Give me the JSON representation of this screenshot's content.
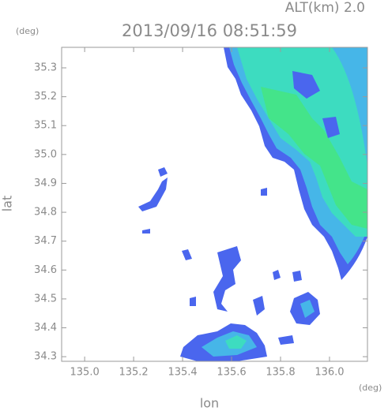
{
  "chart_data": {
    "type": "map",
    "annotation": "ALT(km) 2.0",
    "title": "2013/09/16 08:51:59",
    "y_unit": "(deg)",
    "x_unit": "(deg)",
    "xlabel": "lon",
    "ylabel": "lat",
    "xlim": [
      134.906,
      136.155
    ],
    "ylim": [
      34.284,
      35.371
    ],
    "xticks": [
      {
        "value": 135,
        "label": "135.0"
      },
      135.2,
      135.4,
      135.6,
      135.8,
      {
        "value": 136,
        "label": "136.0"
      }
    ],
    "yticks": [
      34.3,
      34.4,
      34.5,
      34.6,
      34.7,
      34.8,
      34.9,
      {
        "value": 35,
        "label": "35.0"
      },
      35.1,
      35.2,
      35.3
    ]
  }
}
